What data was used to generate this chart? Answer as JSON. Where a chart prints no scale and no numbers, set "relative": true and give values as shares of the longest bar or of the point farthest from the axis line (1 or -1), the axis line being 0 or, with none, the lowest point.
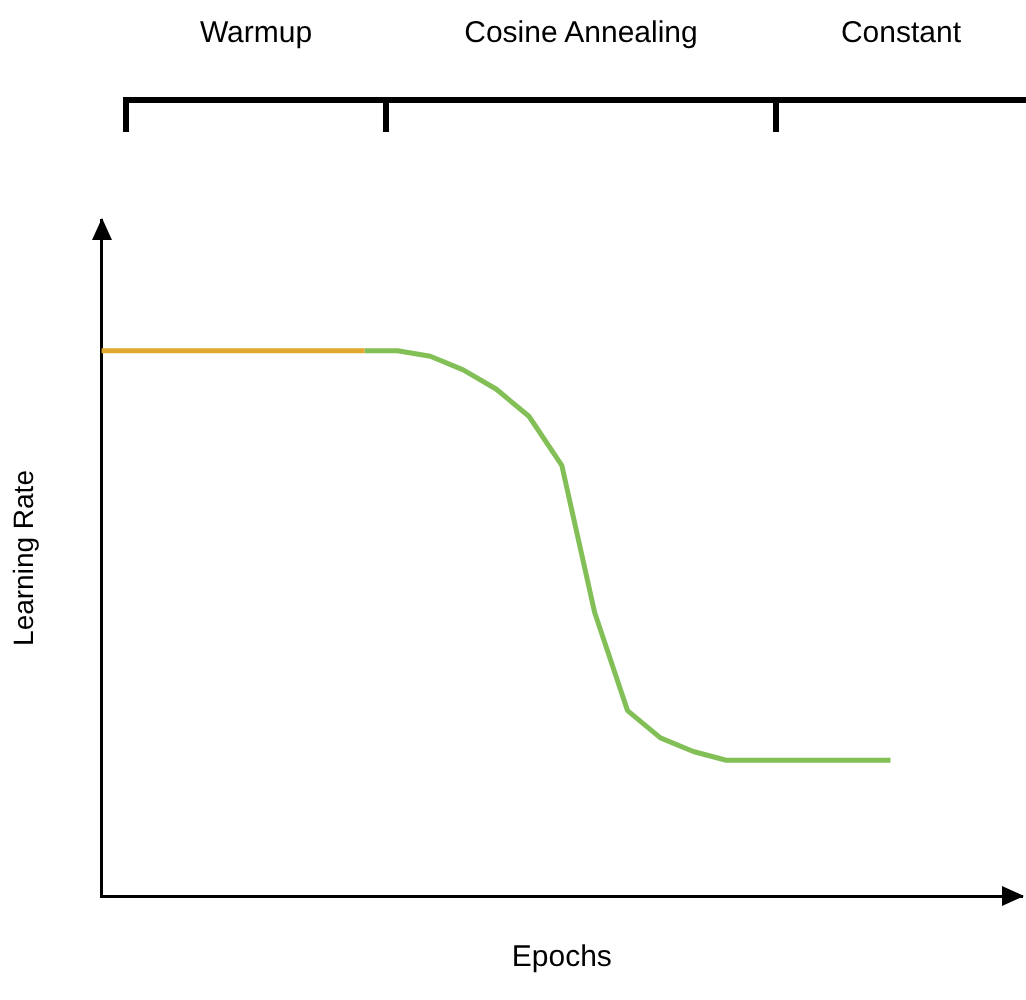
{
  "chart_data": {
    "type": "line",
    "relative": true,
    "xlabel": "Epochs",
    "ylabel": "Learning Rate",
    "annotations": [
      "Warmup",
      "Cosine Annealing",
      "Constant"
    ],
    "categories": [
      null,
      null,
      null,
      null,
      null,
      null,
      null,
      null,
      null,
      null,
      null,
      null,
      null,
      null,
      null,
      null,
      null,
      null,
      null,
      null,
      null,
      null,
      null,
      null,
      null,
      null,
      null,
      null,
      null
    ],
    "series": [
      {
        "color": "#e0a82e",
        "values": [
          1,
          1,
          1,
          1,
          1,
          1,
          1,
          1,
          1,
          null,
          null,
          null,
          null,
          null,
          null,
          null,
          null,
          null,
          null,
          null,
          null,
          null,
          null,
          null,
          null,
          null,
          null,
          null,
          null
        ]
      },
      {
        "color": "#82bf56",
        "values": [
          null,
          null,
          null,
          null,
          null,
          null,
          null,
          null,
          1,
          1,
          0.99,
          0.965,
          0.93,
          0.88,
          0.79,
          0.52,
          0.34,
          0.29,
          0.265,
          0.249,
          0.249,
          0.249,
          0.249,
          0.249,
          0.249,
          null,
          null,
          null,
          null
        ]
      }
    ],
    "grid": false,
    "legend": false,
    "marker": "none",
    "line_style": "solid"
  }
}
